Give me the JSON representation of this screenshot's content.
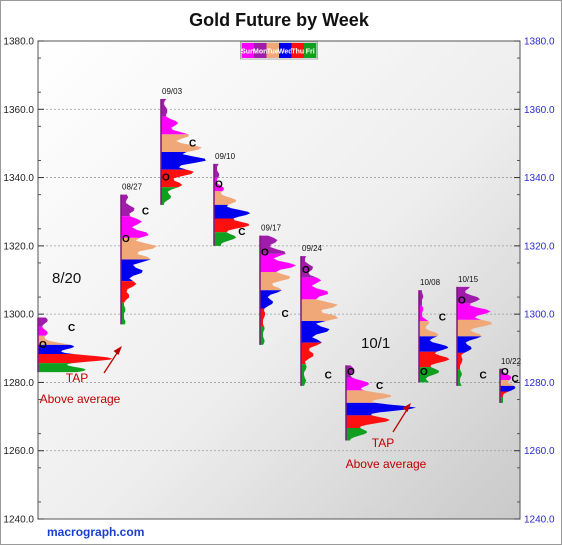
{
  "chart_data": {
    "type": "tpo-profile",
    "title": "Gold Future by Week",
    "ylim": [
      1240,
      1380
    ],
    "yticks": [
      "1240.0",
      "1260.0",
      "1280.0",
      "1300.0",
      "1320.0",
      "1340.0",
      "1360.0",
      "1380.0"
    ],
    "grid": true,
    "legend": {
      "position": "top-center",
      "items": [
        {
          "label": "Sun",
          "color": "#ff00ff"
        },
        {
          "label": "Mon",
          "color": "#a01caa"
        },
        {
          "label": "Tue",
          "color": "#f0a878"
        },
        {
          "label": "Wed",
          "color": "#0000ee"
        },
        {
          "label": "Thu",
          "color": "#ff1010"
        },
        {
          "label": "Fri",
          "color": "#10a020"
        }
      ]
    },
    "weeks": [
      {
        "label": "",
        "low": 1283,
        "high": 1299,
        "open": 1291,
        "close": 1296
      },
      {
        "label": "08/27",
        "low": 1297,
        "high": 1335,
        "open": 1322,
        "close": 1330
      },
      {
        "label": "09/03",
        "low": 1332,
        "high": 1363,
        "open": 1340,
        "close": 1350
      },
      {
        "label": "09/10",
        "low": 1320,
        "high": 1344,
        "open": 1338,
        "close": 1324
      },
      {
        "label": "09/17",
        "low": 1291,
        "high": 1323,
        "open": 1318,
        "close": 1300
      },
      {
        "label": "09/24",
        "low": 1279,
        "high": 1317,
        "open": 1313,
        "close": 1282
      },
      {
        "label": "",
        "low": 1263,
        "high": 1285,
        "open": 1283,
        "close": 1279
      },
      {
        "label": "10/08",
        "low": 1280,
        "high": 1307,
        "open": 1283,
        "close": 1299
      },
      {
        "label": "10/15",
        "low": 1279,
        "high": 1308,
        "open": 1304,
        "close": 1282
      },
      {
        "label": "10/22",
        "low": 1274,
        "high": 1284,
        "open": 1283,
        "close": 1281
      }
    ],
    "annotations": [
      {
        "text": "8/20",
        "style": "big"
      },
      {
        "text": "10/1",
        "style": "big"
      },
      {
        "text": "TAP",
        "style": "note"
      },
      {
        "text": "Above average",
        "style": "note"
      },
      {
        "text": "TAP",
        "style": "note"
      },
      {
        "text": "Above average",
        "style": "note"
      }
    ],
    "watermark": "macrograph.com"
  }
}
